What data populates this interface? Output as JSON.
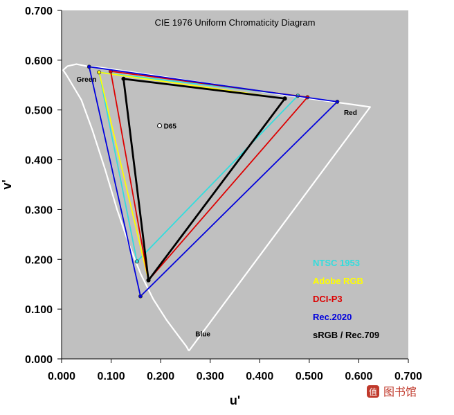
{
  "chart_data": {
    "type": "scatter",
    "title": "CIE 1976 Uniform Chromaticity Diagram",
    "xlabel": "u'",
    "ylabel": "v'",
    "xlim": [
      0.0,
      0.7
    ],
    "ylim": [
      0.0,
      0.7
    ],
    "x_ticks": [
      "0.000",
      "0.100",
      "0.200",
      "0.300",
      "0.400",
      "0.500",
      "0.600",
      "0.700"
    ],
    "y_ticks": [
      "0.000",
      "0.100",
      "0.200",
      "0.300",
      "0.400",
      "0.500",
      "0.600",
      "0.700"
    ],
    "grid": false,
    "plot_background": "#c0c0c0",
    "legend_position": "bottom-right",
    "annotations": [
      {
        "text": "Green",
        "x": 0.03,
        "y": 0.557
      },
      {
        "text": "Red",
        "x": 0.57,
        "y": 0.49
      },
      {
        "text": "Blue",
        "x": 0.27,
        "y": 0.045
      }
    ],
    "white_point": {
      "label": "D65",
      "x": 0.1978,
      "y": 0.4683
    },
    "spectral_locus": {
      "color": "#ffffff",
      "points": [
        [
          0.257,
          0.016
        ],
        [
          0.252,
          0.025
        ],
        [
          0.236,
          0.046
        ],
        [
          0.212,
          0.078
        ],
        [
          0.185,
          0.12
        ],
        [
          0.16,
          0.17
        ],
        [
          0.136,
          0.23
        ],
        [
          0.112,
          0.3
        ],
        [
          0.088,
          0.38
        ],
        [
          0.062,
          0.46
        ],
        [
          0.04,
          0.52
        ],
        [
          0.01,
          0.57
        ],
        [
          0.003,
          0.58
        ],
        [
          0.012,
          0.588
        ],
        [
          0.03,
          0.592
        ],
        [
          0.05,
          0.588
        ],
        [
          0.08,
          0.585
        ],
        [
          0.15,
          0.575
        ],
        [
          0.25,
          0.56
        ],
        [
          0.35,
          0.545
        ],
        [
          0.45,
          0.53
        ],
        [
          0.52,
          0.52
        ],
        [
          0.58,
          0.512
        ],
        [
          0.623,
          0.506
        ]
      ]
    },
    "series": [
      {
        "name": "NTSC 1953",
        "color": "#33dddd",
        "points": [
          [
            0.4769,
            0.5285
          ],
          [
            0.0756,
            0.5757
          ],
          [
            0.1522,
            0.1957
          ]
        ]
      },
      {
        "name": "Adobe RGB",
        "color": "#ffff00",
        "points": [
          [
            0.4507,
            0.5229
          ],
          [
            0.0757,
            0.5757
          ],
          [
            0.1754,
            0.1579
          ]
        ]
      },
      {
        "name": "DCI-P3",
        "color": "#dd0000",
        "points": [
          [
            0.4964,
            0.5256
          ],
          [
            0.0991,
            0.5777
          ],
          [
            0.1754,
            0.1579
          ]
        ]
      },
      {
        "name": "Rec.2020",
        "color": "#0000dd",
        "points": [
          [
            0.5566,
            0.5165
          ],
          [
            0.0556,
            0.5868
          ],
          [
            0.1593,
            0.1258
          ]
        ]
      },
      {
        "name": "sRGB / Rec.709",
        "color": "#000000",
        "points": [
          [
            0.4507,
            0.5229
          ],
          [
            0.125,
            0.5625
          ],
          [
            0.1754,
            0.1579
          ]
        ]
      }
    ]
  },
  "watermark": {
    "text": "图书馆",
    "brand": "值"
  }
}
